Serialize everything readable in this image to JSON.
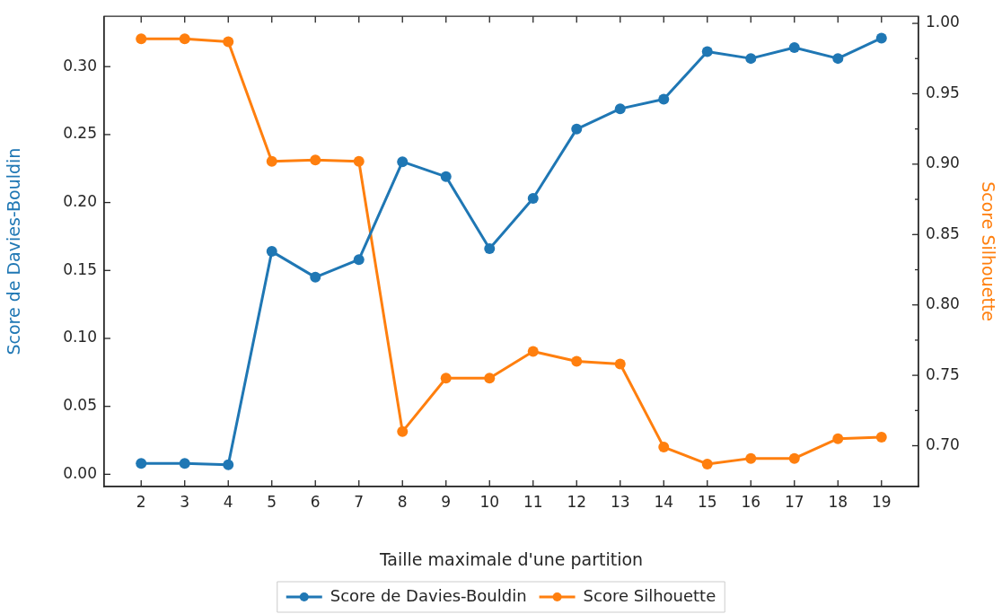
{
  "chart_data": {
    "type": "line",
    "xlabel": "Taille maximale d'une partition",
    "ylabel": "Score de Davies-Bouldin",
    "y2label": "Score Silhouette",
    "x": [
      2,
      3,
      4,
      5,
      6,
      7,
      8,
      9,
      10,
      11,
      12,
      13,
      14,
      15,
      16,
      17,
      18,
      19
    ],
    "xlim": [
      1.15,
      19.85
    ],
    "xticks": [
      2,
      3,
      4,
      5,
      6,
      7,
      8,
      9,
      10,
      11,
      12,
      13,
      14,
      15,
      16,
      17,
      18,
      19
    ],
    "ylim": [
      -0.009,
      0.337
    ],
    "yticks": [
      {
        "value": 0,
        "label": "0.00"
      },
      {
        "value": 0.05,
        "label": "0.05"
      },
      {
        "value": 0.1,
        "label": "0.10"
      },
      {
        "value": 0.15,
        "label": "0.15"
      },
      {
        "value": 0.2,
        "label": "0.20"
      },
      {
        "value": 0.25,
        "label": "0.25"
      },
      {
        "value": 0.3,
        "label": "0.30"
      }
    ],
    "y2lim": [
      0.671,
      1.005
    ],
    "y2ticks": [
      {
        "value": 0.7,
        "label": "0.70"
      },
      {
        "value": 0.725,
        "label": null
      },
      {
        "value": 0.75,
        "label": "0.75"
      },
      {
        "value": 0.775,
        "label": null
      },
      {
        "value": 0.8,
        "label": "0.80"
      },
      {
        "value": 0.825,
        "label": null
      },
      {
        "value": 0.85,
        "label": "0.85"
      },
      {
        "value": 0.875,
        "label": null
      },
      {
        "value": 0.9,
        "label": "0.90"
      },
      {
        "value": 0.925,
        "label": null
      },
      {
        "value": 0.95,
        "label": "0.95"
      },
      {
        "value": 0.975,
        "label": null
      },
      {
        "value": 1.0,
        "label": "1.00"
      }
    ],
    "series": [
      {
        "name": "Score de Davies-Bouldin",
        "color": "#1f77b4",
        "values": [
          0.008,
          0.008,
          0.007,
          0.164,
          0.145,
          0.158,
          0.23,
          0.219,
          0.166,
          0.203,
          0.254,
          0.269,
          0.276,
          0.311,
          0.306,
          0.314,
          0.306,
          0.321
        ]
      },
      {
        "name": "Score Silhouette",
        "color": "#ff7f0e",
        "axis": "y2",
        "values": [
          0.989,
          0.989,
          0.987,
          0.902,
          0.903,
          0.902,
          0.71,
          0.748,
          0.748,
          0.767,
          0.76,
          0.758,
          0.699,
          0.687,
          0.691,
          0.691,
          0.705,
          0.706
        ]
      }
    ],
    "grid": false,
    "legend": "bottom",
    "marker": "circle",
    "line_style": "solid"
  }
}
